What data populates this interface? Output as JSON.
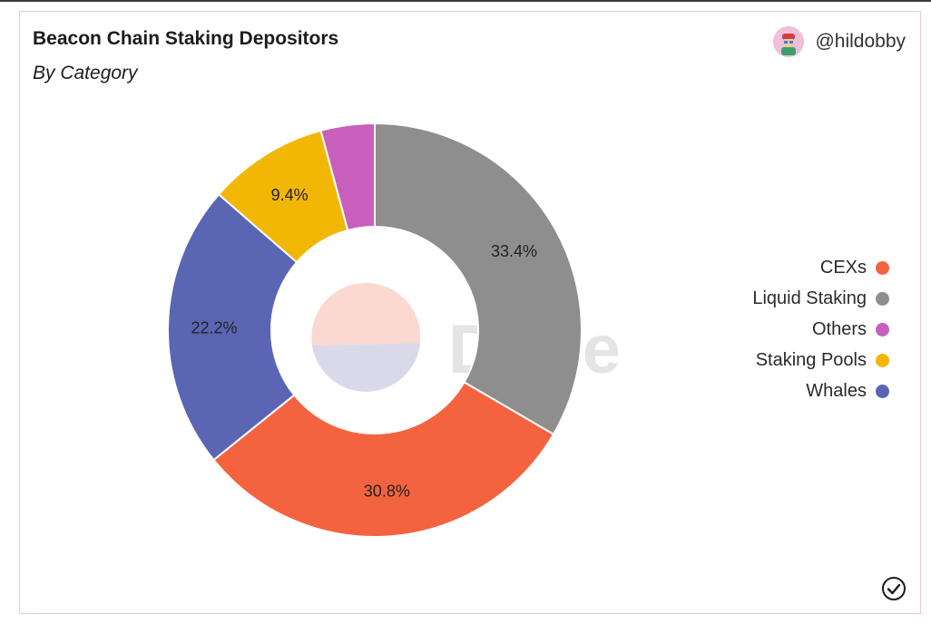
{
  "header": {
    "title": "Beacon Chain Staking Depositors",
    "subtitle": "By Category",
    "author": "@hildobby"
  },
  "watermark": {
    "text": "Dune"
  },
  "icons": {
    "avatar": "user-avatar-icon",
    "status": "check-circle-icon"
  },
  "colors": {
    "CEXs": "#f4633f",
    "Liquid Staking": "#8e8e8e",
    "Others": "#c95fbc",
    "Staking Pools": "#f2b705",
    "Whales": "#5a66b3"
  },
  "chart_data": {
    "type": "pie",
    "donut": true,
    "start_angle_deg": 0,
    "direction": "clockwise",
    "slices": [
      {
        "label": "Liquid Staking",
        "value": 33.4,
        "data_label": "33.4%"
      },
      {
        "label": "CEXs",
        "value": 30.8,
        "data_label": "30.8%"
      },
      {
        "label": "Whales",
        "value": 22.2,
        "data_label": "22.2%"
      },
      {
        "label": "Staking Pools",
        "value": 9.4,
        "data_label": "9.4%"
      },
      {
        "label": "Others",
        "value": 4.2,
        "data_label": ""
      }
    ],
    "legend": {
      "placement": "right",
      "entries": [
        "CEXs",
        "Liquid Staking",
        "Others",
        "Staking Pools",
        "Whales"
      ]
    }
  }
}
